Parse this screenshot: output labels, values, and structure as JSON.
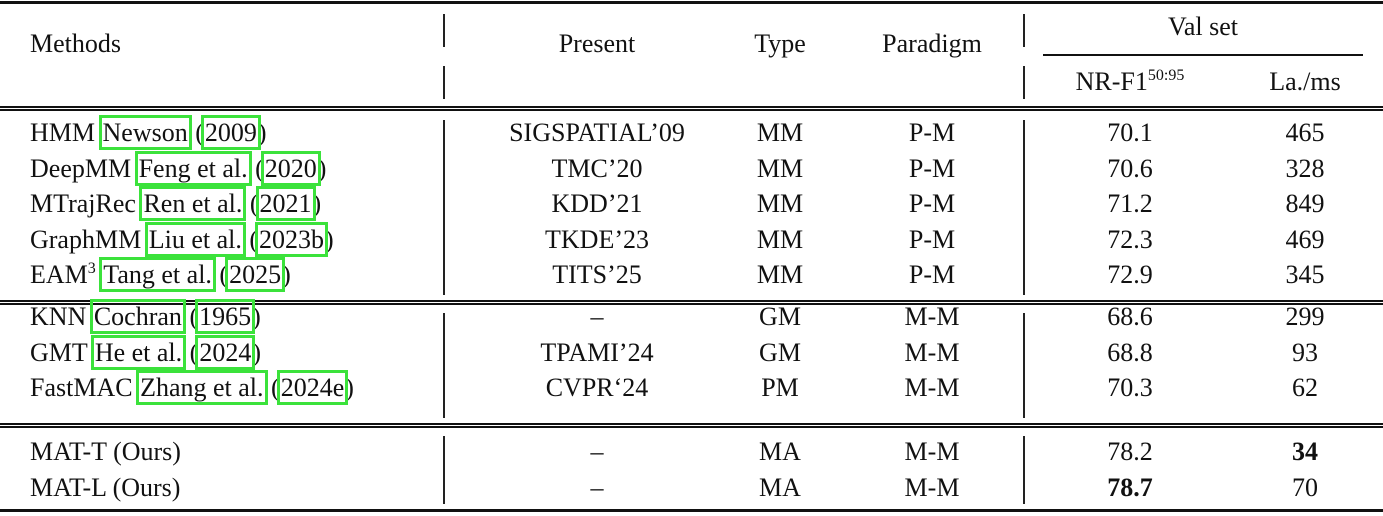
{
  "header": {
    "methods": "Methods",
    "present": "Present",
    "type": "Type",
    "paradigm": "Paradigm",
    "val_set": "Val set",
    "nr_f1": "NR-F1",
    "nr_f1_sup": "50:95",
    "latency": "La./ms"
  },
  "citation_box_color": "#3be23b",
  "groups": [
    [
      {
        "method": "HMM",
        "method_sup": "",
        "author": "Newson",
        "year": "2009",
        "present": "SIGSPATIAL’09",
        "type": "MM",
        "paradigm": "P-M",
        "nr_f1": "70.1",
        "latency": "465"
      },
      {
        "method": "DeepMM",
        "method_sup": "",
        "author": "Feng et al.",
        "year": "2020",
        "present": "TMC’20",
        "type": "MM",
        "paradigm": "P-M",
        "nr_f1": "70.6",
        "latency": "328"
      },
      {
        "method": "MTrajRec",
        "method_sup": "",
        "author": "Ren et al.",
        "year": "2021",
        "present": "KDD’21",
        "type": "MM",
        "paradigm": "P-M",
        "nr_f1": "71.2",
        "latency": "849"
      },
      {
        "method": "GraphMM",
        "method_sup": "",
        "author": "Liu et al.",
        "year": "2023b",
        "present": "TKDE’23",
        "type": "MM",
        "paradigm": "P-M",
        "nr_f1": "72.3",
        "latency": "469"
      },
      {
        "method": "EAM",
        "method_sup": "3",
        "author": "Tang et al.",
        "year": "2025",
        "present": "TITS’25",
        "type": "MM",
        "paradigm": "P-M",
        "nr_f1": "72.9",
        "latency": "345"
      }
    ],
    [
      {
        "method": "KNN",
        "method_sup": "",
        "author": "Cochran",
        "year": "1965",
        "present": "–",
        "type": "GM",
        "paradigm": "M-M",
        "nr_f1": "68.6",
        "latency": "299"
      },
      {
        "method": "GMT",
        "method_sup": "",
        "author": "He et al.",
        "year": "2024",
        "present": "TPAMI’24",
        "type": "GM",
        "paradigm": "M-M",
        "nr_f1": "68.8",
        "latency": "93"
      },
      {
        "method": "FastMAC",
        "method_sup": "",
        "author": "Zhang et al.",
        "year": "2024e",
        "present": "CVPR‘24",
        "type": "PM",
        "paradigm": "M-M",
        "nr_f1": "70.3",
        "latency": "62"
      }
    ],
    [
      {
        "method": "MAT-T (Ours)",
        "method_sup": "",
        "author": "",
        "year": "",
        "present": "–",
        "type": "MA",
        "paradigm": "M-M",
        "nr_f1": "78.2",
        "latency": "34",
        "bold": "latency"
      },
      {
        "method": "MAT-L (Ours)",
        "method_sup": "",
        "author": "",
        "year": "",
        "present": "–",
        "type": "MA",
        "paradigm": "M-M",
        "nr_f1": "78.7",
        "latency": "70",
        "bold": "nr_f1"
      }
    ]
  ]
}
